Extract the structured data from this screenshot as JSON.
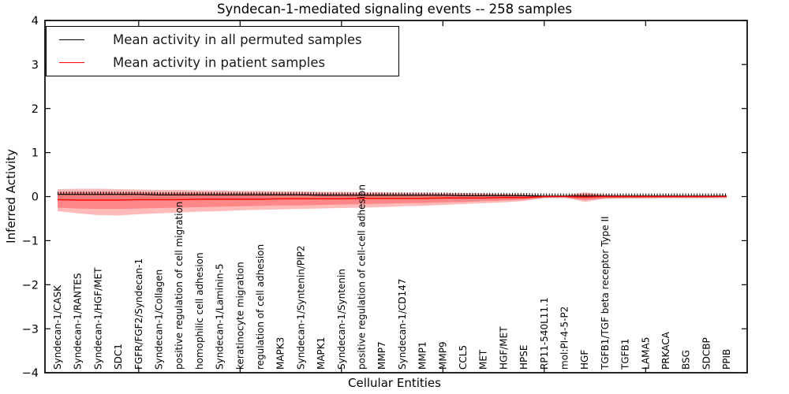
{
  "title": "Syndecan-1-mediated signaling events -- 258 samples",
  "axes": {
    "xlabel": "Cellular Entities",
    "ylabel": "Inferred Activity"
  },
  "legend": {
    "items": [
      {
        "label": "Mean activity in all permuted samples",
        "color": "#000000"
      },
      {
        "label": "Mean activity in patient samples",
        "color": "#ff0000"
      }
    ]
  },
  "colors": {
    "patient_line": "#ff0000",
    "permuted_line": "#000000",
    "patient_band": "rgba(255,0,0,0.27)",
    "permuted_band": "#e2e2e2",
    "axes": "#000000"
  },
  "chart_data": {
    "type": "line",
    "title": "Syndecan-1-mediated signaling events -- 258 samples",
    "samples": 258,
    "xlabel": "Cellular Entities",
    "ylabel": "Inferred Activity",
    "ylim": [
      -4,
      4
    ],
    "yticks": [
      -4,
      -3,
      -2,
      -1,
      0,
      1,
      2,
      3,
      4
    ],
    "xtick_positions": [
      5,
      10,
      15,
      20,
      25,
      30
    ],
    "grid": false,
    "legend_position": "upper left",
    "categories": [
      "Syndecan-1/CASK",
      "Syndecan-1/RANTES",
      "Syndecan-1/HGF/MET",
      "SDC1",
      "FGFR/FGF2/Syndecan-1",
      "Syndecan-1/Collagen",
      "positive regulation of cell migration",
      "homophilic cell adhesion",
      "Syndecan-1/Laminin-5",
      "keratinocyte migration",
      "regulation of cell adhesion",
      "MAPK3",
      "Syndecan-1/Syntenin/PIP2",
      "MAPK1",
      "Syndecan-1/Syntenin",
      "positive regulation of cell-cell adhesion",
      "MMP7",
      "Syndecan-1/CD147",
      "MMP1",
      "MMP9",
      "CCL5",
      "MET",
      "HGF/MET",
      "HPSE",
      "RP11-540L11.1",
      "mol:PI-4-5-P2",
      "HGF",
      "TGFB1/TGF beta receptor Type II",
      "TGFB1",
      "LAMA5",
      "PRKACA",
      "BSG",
      "SDCBP",
      "PPIB"
    ],
    "series": [
      {
        "name": "Mean activity in all permuted samples",
        "color": "#000000",
        "marker": "vertical-tick",
        "values": [
          0.05,
          0.05,
          0.05,
          0.05,
          0.05,
          0.04,
          0.04,
          0.04,
          0.04,
          0.04,
          0.04,
          0.04,
          0.04,
          0.03,
          0.03,
          0.03,
          0.03,
          0.03,
          0.03,
          0.03,
          0.02,
          0.02,
          0.02,
          0.02,
          0.01,
          0.01,
          0.01,
          0.01,
          0.01,
          0.01,
          0.01,
          0.01,
          0.01,
          0.01
        ]
      },
      {
        "name": "Mean activity in patient samples",
        "color": "#ff0000",
        "marker": "none",
        "values": [
          -0.07,
          -0.08,
          -0.08,
          -0.08,
          -0.07,
          -0.07,
          -0.07,
          -0.06,
          -0.06,
          -0.06,
          -0.06,
          -0.05,
          -0.05,
          -0.05,
          -0.05,
          -0.04,
          -0.04,
          -0.04,
          -0.04,
          -0.03,
          -0.03,
          -0.03,
          -0.02,
          -0.02,
          0.0,
          0.0,
          -0.01,
          0.0,
          0.0,
          0.0,
          0.0,
          0.0,
          0.0,
          0.0
        ]
      }
    ],
    "bands": [
      {
        "name": "permuted samples spread",
        "color": "#e2e2e2",
        "upper": [
          0.07,
          0.07,
          0.07,
          0.07,
          0.07,
          0.07,
          0.07,
          0.07,
          0.07,
          0.07,
          0.07,
          0.07,
          0.06,
          0.06,
          0.06,
          0.06,
          0.06,
          0.06,
          0.06,
          0.06,
          0.06,
          0.06,
          0.06,
          0.06,
          0.05,
          0.05,
          0.05,
          0.05,
          0.05,
          0.05,
          0.05,
          0.05,
          0.05,
          0.05
        ],
        "lower": [
          -0.07,
          -0.07,
          -0.07,
          -0.07,
          -0.07,
          -0.07,
          -0.07,
          -0.07,
          -0.07,
          -0.07,
          -0.07,
          -0.07,
          -0.06,
          -0.06,
          -0.06,
          -0.06,
          -0.06,
          -0.06,
          -0.06,
          -0.06,
          -0.06,
          -0.06,
          -0.06,
          -0.06,
          -0.05,
          -0.05,
          -0.05,
          -0.05,
          -0.05,
          -0.05,
          -0.05,
          -0.05,
          -0.05,
          -0.05
        ]
      },
      {
        "name": "patient samples spread outer",
        "color": "rgba(255,0,0,0.27)",
        "upper": [
          0.17,
          0.18,
          0.18,
          0.17,
          0.16,
          0.15,
          0.15,
          0.14,
          0.14,
          0.13,
          0.13,
          0.12,
          0.12,
          0.11,
          0.11,
          0.1,
          0.1,
          0.09,
          0.09,
          0.08,
          0.08,
          0.07,
          0.06,
          0.05,
          0.02,
          0.02,
          0.1,
          0.04,
          0.03,
          0.03,
          0.03,
          0.02,
          0.02,
          0.02
        ],
        "lower": [
          -0.33,
          -0.38,
          -0.42,
          -0.43,
          -0.4,
          -0.38,
          -0.36,
          -0.34,
          -0.33,
          -0.31,
          -0.3,
          -0.29,
          -0.28,
          -0.27,
          -0.26,
          -0.25,
          -0.24,
          -0.22,
          -0.21,
          -0.19,
          -0.17,
          -0.15,
          -0.13,
          -0.1,
          -0.03,
          -0.02,
          -0.12,
          -0.05,
          -0.04,
          -0.04,
          -0.03,
          -0.03,
          -0.03,
          -0.02
        ]
      },
      {
        "name": "patient samples spread inner",
        "color": "rgba(255,0,0,0.27)",
        "upper": [
          0.1,
          0.11,
          0.11,
          0.1,
          0.1,
          0.09,
          0.09,
          0.09,
          0.08,
          0.08,
          0.08,
          0.07,
          0.07,
          0.07,
          0.06,
          0.06,
          0.06,
          0.05,
          0.05,
          0.05,
          0.04,
          0.04,
          0.04,
          0.03,
          0.01,
          0.01,
          0.06,
          0.02,
          0.02,
          0.02,
          0.01,
          0.01,
          0.01,
          0.01
        ],
        "lower": [
          -0.25,
          -0.27,
          -0.28,
          -0.28,
          -0.27,
          -0.26,
          -0.25,
          -0.24,
          -0.23,
          -0.22,
          -0.21,
          -0.2,
          -0.2,
          -0.19,
          -0.18,
          -0.17,
          -0.16,
          -0.15,
          -0.14,
          -0.13,
          -0.12,
          -0.1,
          -0.09,
          -0.07,
          -0.02,
          -0.01,
          -0.08,
          -0.03,
          -0.03,
          -0.02,
          -0.02,
          -0.02,
          -0.02,
          -0.01
        ]
      }
    ]
  }
}
